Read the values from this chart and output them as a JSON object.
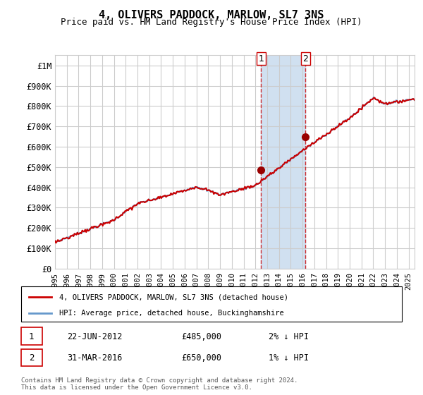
{
  "title": "4, OLIVERS PADDOCK, MARLOW, SL7 3NS",
  "subtitle": "Price paid vs. HM Land Registry's House Price Index (HPI)",
  "ylabel_ticks": [
    "£0",
    "£100K",
    "£200K",
    "£300K",
    "£400K",
    "£500K",
    "£600K",
    "£700K",
    "£800K",
    "£900K",
    "£1M"
  ],
  "ytick_vals": [
    0,
    100000,
    200000,
    300000,
    400000,
    500000,
    600000,
    700000,
    800000,
    900000,
    1000000
  ],
  "ylim": [
    0,
    1050000
  ],
  "xlim_start": 1995.0,
  "xlim_end": 2025.5,
  "sale1_date": 2012.47,
  "sale1_price": 485000,
  "sale1_label": "1",
  "sale1_hpi_diff": "2% ↓ HPI",
  "sale2_date": 2016.25,
  "sale2_price": 650000,
  "sale2_label": "2",
  "sale2_hpi_diff": "1% ↓ HPI",
  "shade_x1": 2012.47,
  "shade_x2": 2016.25,
  "legend_red_label": "4, OLIVERS PADDOCK, MARLOW, SL7 3NS (detached house)",
  "legend_blue_label": "HPI: Average price, detached house, Buckinghamshire",
  "table_row1": [
    "1",
    "22-JUN-2012",
    "£485,000",
    "2% ↓ HPI"
  ],
  "table_row2": [
    "2",
    "31-MAR-2016",
    "£650,000",
    "1% ↓ HPI"
  ],
  "footer": "Contains HM Land Registry data © Crown copyright and database right 2024.\nThis data is licensed under the Open Government Licence v3.0.",
  "red_color": "#cc0000",
  "blue_color": "#6699cc",
  "shade_color": "#d0e0f0",
  "grid_color": "#cccccc",
  "background_color": "#ffffff"
}
